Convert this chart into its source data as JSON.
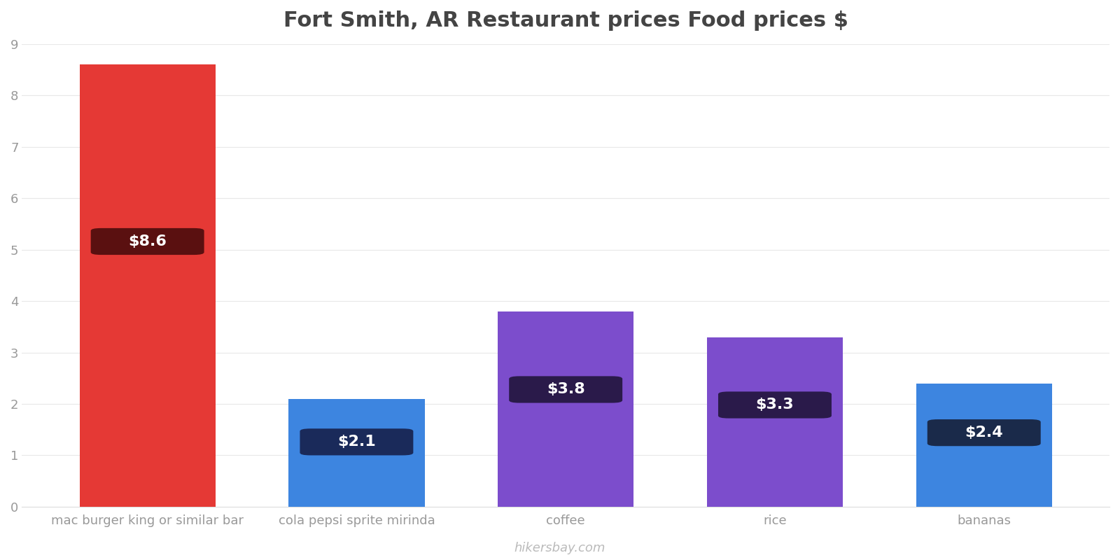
{
  "title": "Fort Smith, AR Restaurant prices Food prices $",
  "categories": [
    "mac burger king or similar bar",
    "cola pepsi sprite mirinda",
    "coffee",
    "rice",
    "bananas"
  ],
  "values": [
    8.6,
    2.1,
    3.8,
    3.3,
    2.4
  ],
  "bar_colors": [
    "#e53935",
    "#3d85e0",
    "#7c4dcc",
    "#7c4dcc",
    "#3d85e0"
  ],
  "label_bg_colors": [
    "#5a1010",
    "#1a2a5a",
    "#2a1a4a",
    "#2a1a4a",
    "#1a2a4a"
  ],
  "labels": [
    "$8.6",
    "$2.1",
    "$3.8",
    "$3.3",
    "$2.4"
  ],
  "ylim": [
    0,
    9
  ],
  "yticks": [
    0,
    1,
    2,
    3,
    4,
    5,
    6,
    7,
    8,
    9
  ],
  "background_color": "#ffffff",
  "grid_color": "#e8e8e8",
  "title_fontsize": 22,
  "tick_fontsize": 13,
  "label_fontsize": 16,
  "watermark": "hikersbay.com",
  "watermark_color": "#bbbbbb",
  "bar_width": 0.65
}
